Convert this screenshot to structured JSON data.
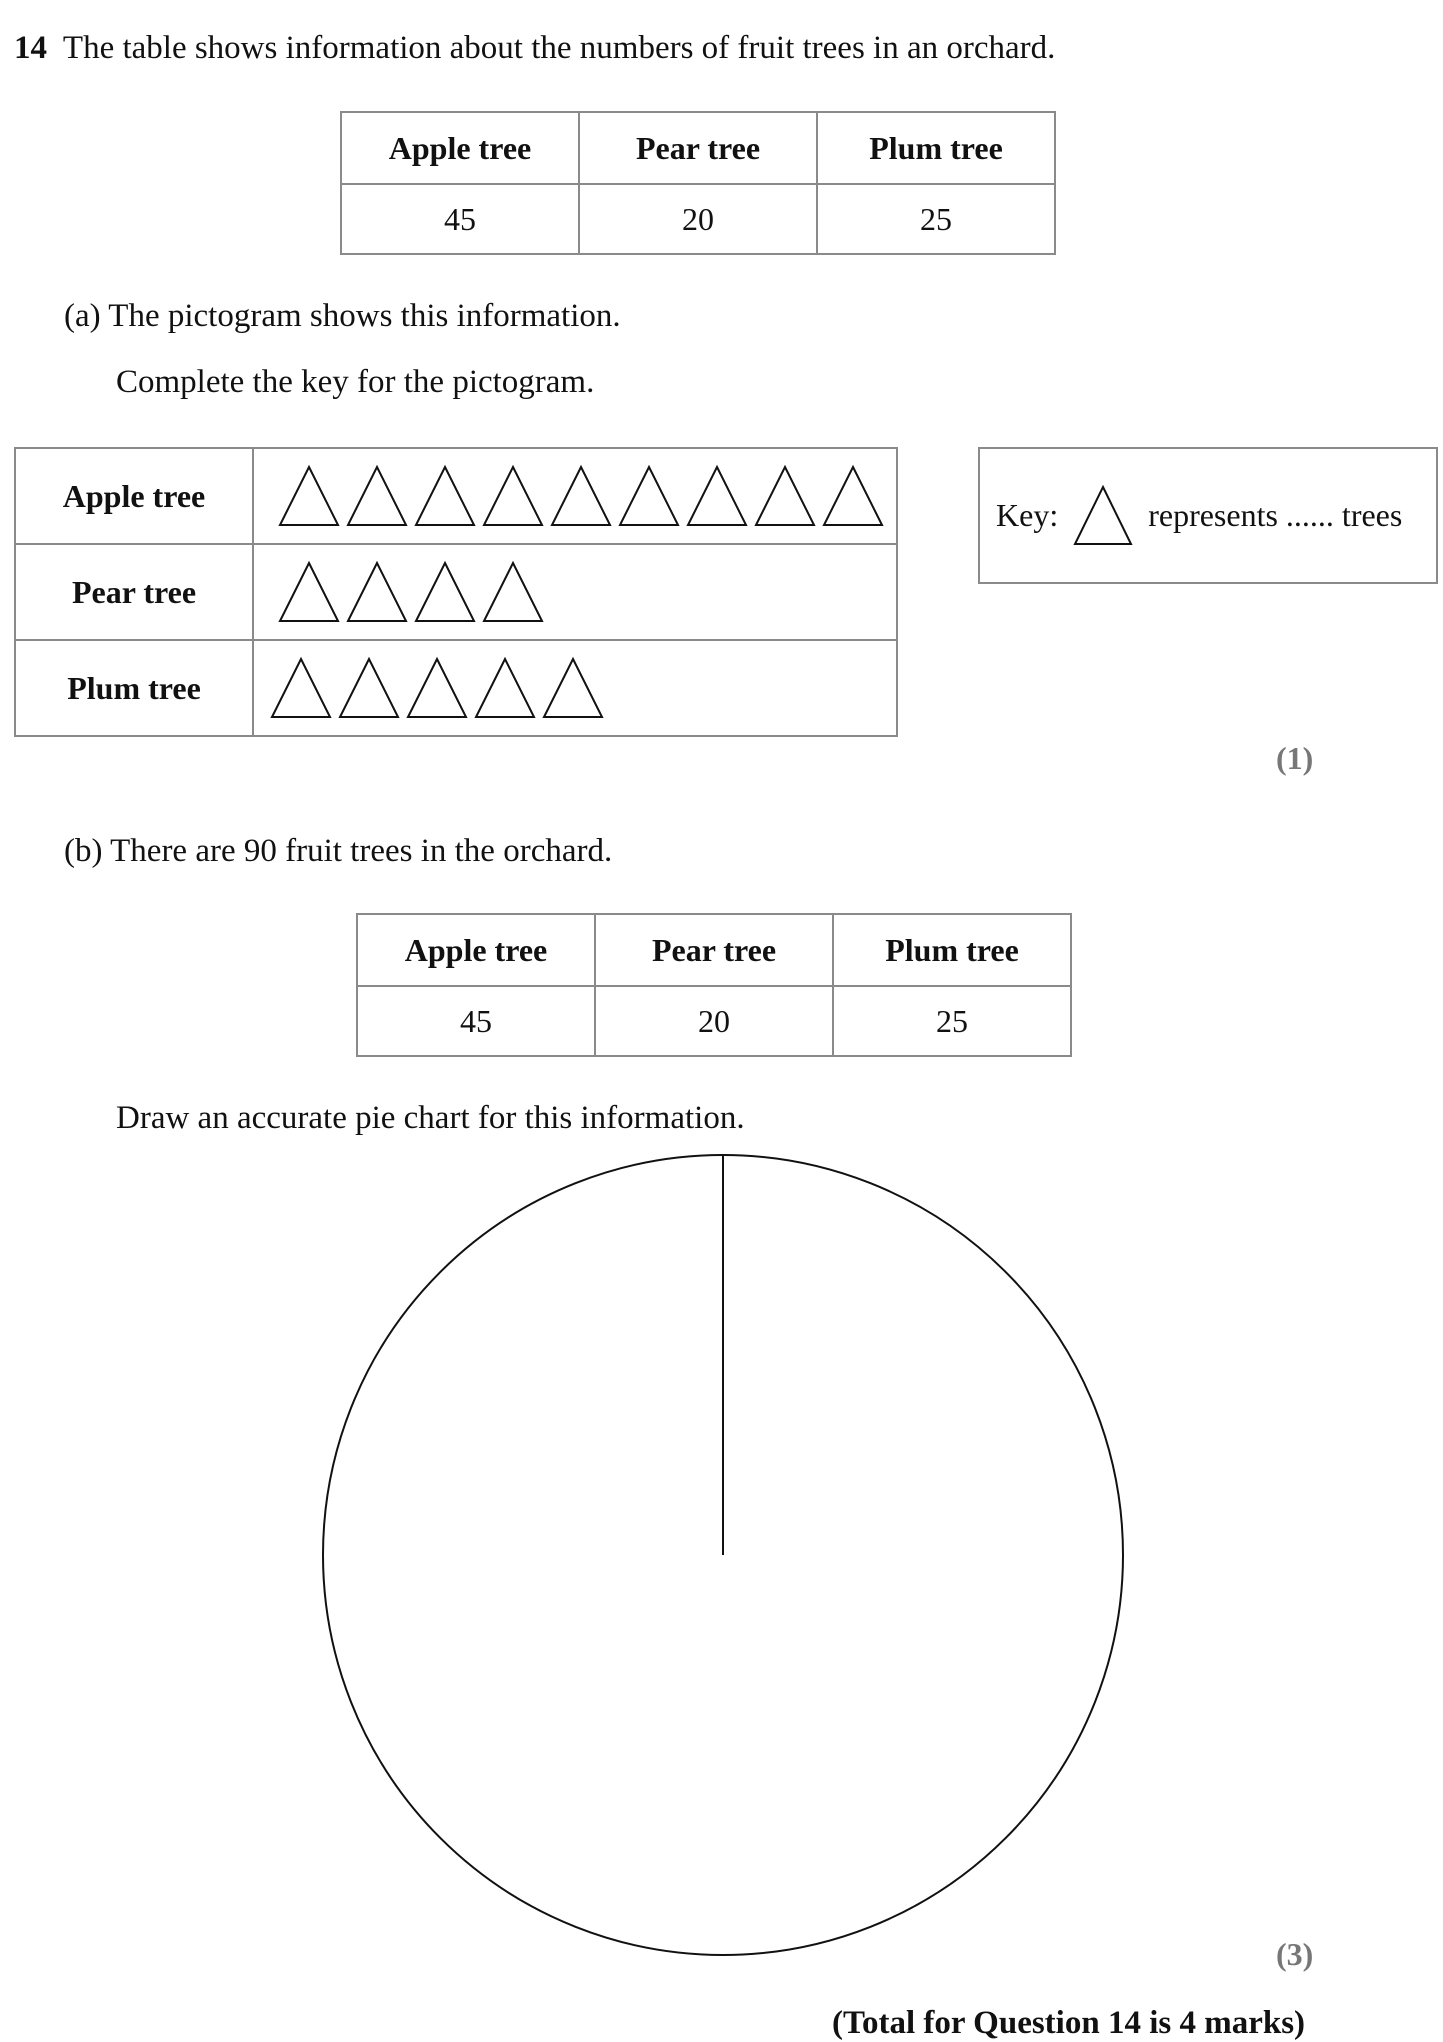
{
  "question": {
    "number": "14",
    "intro": "The table shows information about the numbers of fruit trees in an orchard."
  },
  "table_top": {
    "headers": [
      "Apple tree",
      "Pear tree",
      "Plum tree"
    ],
    "values": [
      "45",
      "20",
      "25"
    ]
  },
  "part_a": {
    "label": "(a)",
    "line1": "The pictogram shows this information.",
    "line2": "Complete the key for the pictogram.",
    "pictogram": {
      "rows": [
        {
          "label": "Apple tree",
          "symbols": 9
        },
        {
          "label": "Pear tree",
          "symbols": 4
        },
        {
          "label": "Plum tree",
          "symbols": 5
        }
      ]
    },
    "key": {
      "prefix": "Key:",
      "middle": "represents",
      "dots": "......",
      "suffix": "trees"
    },
    "marks": "(1)"
  },
  "part_b": {
    "label": "(b)",
    "line1": "There are 90 fruit trees in the orchard.",
    "table": {
      "headers": [
        "Apple tree",
        "Pear tree",
        "Plum tree"
      ],
      "values": [
        "45",
        "20",
        "25"
      ]
    },
    "instruction": "Draw an accurate pie chart for this information.",
    "marks": "(3)"
  },
  "total": "(Total for Question 14 is 4 marks)"
}
